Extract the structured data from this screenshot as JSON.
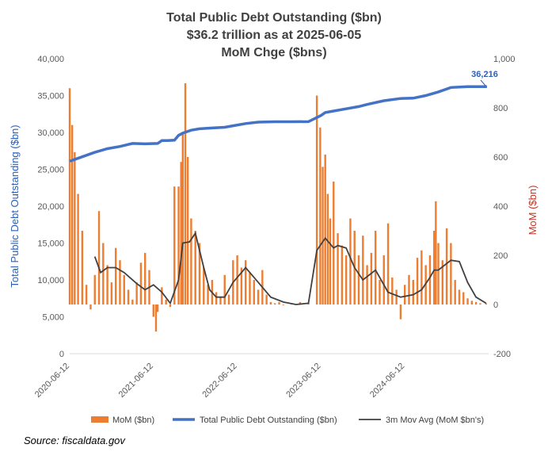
{
  "chart_data": {
    "type": "bar+line",
    "title_lines": [
      "Total Public Debt Outstanding ($bn)",
      "$36.2 trillion as at 2025-06-05",
      "MoM Chge ($bns)"
    ],
    "y_left_label": "Total Public Debt Outstanding ($bn)",
    "y_right_label": "MoM ($bn)",
    "y_left_ticks": [
      "0",
      "5,000",
      "10,000",
      "15,000",
      "20,000",
      "25,000",
      "30,000",
      "35,000",
      "40,000"
    ],
    "y_right_ticks": [
      "-200",
      "0",
      "200",
      "400",
      "600",
      "800",
      "1,000"
    ],
    "x_ticks": [
      "2020-06-12",
      "2021-06-12",
      "2022-06-12",
      "2023-06-12",
      "2024-06-12"
    ],
    "ylim_left": [
      0,
      40000
    ],
    "ylim_right": [
      -200,
      1000
    ],
    "xlim_years": [
      2020.45,
      2025.45
    ],
    "last_value_label": "36,216",
    "legend": [
      "MoM ($bn)",
      "Total Public Debt Outstanding ($bn)",
      "3m Mov Avg (MoM $bn's)"
    ],
    "colors": {
      "mom": "#ed7d31",
      "debt": "#4472c4",
      "avg": "#404040"
    },
    "grid": false,
    "legend_position": "bottom",
    "series": [
      {
        "name": "Total Public Debt Outstanding ($bn)",
        "axis": "left",
        "x": [
          2020.45,
          2020.6,
          2020.75,
          2020.9,
          2021.05,
          2021.2,
          2021.35,
          2021.5,
          2021.55,
          2021.62,
          2021.7,
          2021.75,
          2021.8,
          2021.9,
          2022.0,
          2022.15,
          2022.3,
          2022.4,
          2022.55,
          2022.7,
          2022.9,
          2023.1,
          2023.3,
          2023.45,
          2023.5,
          2023.6,
          2023.75,
          2023.9,
          2024.0,
          2024.2,
          2024.4,
          2024.55,
          2024.7,
          2024.85,
          2025.0,
          2025.2,
          2025.43
        ],
        "y": [
          26100,
          26700,
          27300,
          27800,
          28100,
          28500,
          28450,
          28500,
          28900,
          28900,
          28950,
          29600,
          29900,
          30300,
          30500,
          30600,
          30700,
          30900,
          31200,
          31400,
          31450,
          31450,
          31460,
          32300,
          32700,
          32900,
          33200,
          33500,
          33800,
          34300,
          34600,
          34650,
          35000,
          35500,
          36100,
          36200,
          36216
        ]
      },
      {
        "name": "3m Mov Avg (MoM $bn's)",
        "axis": "right",
        "x": [
          2020.75,
          2020.82,
          2020.9,
          2021.0,
          2021.1,
          2021.25,
          2021.35,
          2021.45,
          2021.55,
          2021.65,
          2021.75,
          2021.8,
          2021.88,
          2021.95,
          2022.05,
          2022.12,
          2022.2,
          2022.3,
          2022.4,
          2022.55,
          2022.7,
          2022.85,
          2023.0,
          2023.15,
          2023.3,
          2023.4,
          2023.5,
          2023.6,
          2023.65,
          2023.75,
          2023.85,
          2023.95,
          2024.1,
          2024.25,
          2024.4,
          2024.55,
          2024.65,
          2024.75,
          2024.8,
          2024.85,
          2025.0,
          2025.1,
          2025.2,
          2025.3,
          2025.42
        ],
        "y": [
          195,
          130,
          150,
          150,
          130,
          85,
          60,
          80,
          50,
          5,
          100,
          250,
          255,
          290,
          150,
          60,
          30,
          30,
          90,
          150,
          90,
          30,
          10,
          0,
          5,
          220,
          270,
          230,
          240,
          230,
          150,
          100,
          140,
          50,
          30,
          40,
          60,
          110,
          140,
          140,
          180,
          175,
          90,
          30,
          5
        ]
      },
      {
        "name": "MoM ($bn)",
        "axis": "right",
        "x": [
          2020.45,
          2020.48,
          2020.51,
          2020.55,
          2020.6,
          2020.65,
          2020.7,
          2020.75,
          2020.8,
          2020.85,
          2020.9,
          2020.95,
          2021.0,
          2021.05,
          2021.1,
          2021.15,
          2021.2,
          2021.25,
          2021.3,
          2021.35,
          2021.4,
          2021.45,
          2021.48,
          2021.5,
          2021.55,
          2021.6,
          2021.65,
          2021.7,
          2021.75,
          2021.78,
          2021.8,
          2021.83,
          2021.86,
          2021.9,
          2021.95,
          2022.0,
          2022.05,
          2022.1,
          2022.15,
          2022.2,
          2022.25,
          2022.3,
          2022.35,
          2022.4,
          2022.45,
          2022.5,
          2022.55,
          2022.6,
          2022.65,
          2022.7,
          2022.75,
          2022.8,
          2022.85,
          2022.9,
          2022.95,
          2023.0,
          2023.1,
          2023.2,
          2023.3,
          2023.4,
          2023.44,
          2023.47,
          2023.5,
          2023.53,
          2023.56,
          2023.6,
          2023.65,
          2023.7,
          2023.75,
          2023.8,
          2023.85,
          2023.9,
          2023.95,
          2024.0,
          2024.05,
          2024.1,
          2024.15,
          2024.2,
          2024.25,
          2024.3,
          2024.35,
          2024.4,
          2024.45,
          2024.5,
          2024.55,
          2024.6,
          2024.65,
          2024.7,
          2024.75,
          2024.8,
          2024.82,
          2024.85,
          2024.9,
          2024.95,
          2025.0,
          2025.05,
          2025.1,
          2025.15,
          2025.2,
          2025.25,
          2025.3,
          2025.35,
          2025.42
        ],
        "y": [
          880,
          730,
          620,
          450,
          300,
          80,
          -20,
          120,
          380,
          250,
          160,
          90,
          230,
          180,
          120,
          60,
          20,
          90,
          170,
          210,
          140,
          -50,
          -110,
          -30,
          70,
          20,
          -10,
          480,
          480,
          580,
          700,
          900,
          600,
          350,
          300,
          250,
          150,
          80,
          100,
          50,
          30,
          120,
          40,
          180,
          200,
          150,
          180,
          130,
          100,
          60,
          140,
          40,
          10,
          5,
          10,
          0,
          5,
          10,
          5,
          850,
          720,
          560,
          610,
          450,
          350,
          500,
          290,
          240,
          200,
          350,
          300,
          200,
          280,
          160,
          210,
          300,
          100,
          200,
          330,
          110,
          60,
          -60,
          80,
          120,
          100,
          190,
          220,
          160,
          200,
          300,
          420,
          250,
          180,
          310,
          250,
          100,
          60,
          50,
          25,
          15,
          10,
          5,
          5
        ]
      }
    ]
  },
  "source_text": "Source: fiscaldata.gov"
}
